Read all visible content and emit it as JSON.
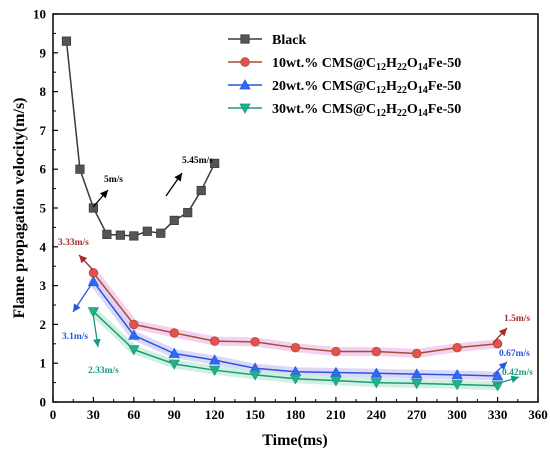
{
  "chart_data": {
    "type": "line",
    "xlabel": "Time(ms)",
    "ylabel": "Flame propagation velocity(m/s)",
    "xlim": [
      0,
      360
    ],
    "ylim": [
      0,
      10
    ],
    "xticks": [
      "0",
      "30",
      "60",
      "90",
      "120",
      "150",
      "180",
      "210",
      "240",
      "270",
      "300",
      "330",
      "360"
    ],
    "yticks": [
      "0",
      "1",
      "2",
      "3",
      "4",
      "5",
      "6",
      "7",
      "8",
      "9",
      "10"
    ],
    "grid": false,
    "legend_position": "top-right",
    "series": [
      {
        "name": "Black",
        "color": "#3a3a3a",
        "fill": "#555555",
        "marker": "square",
        "x": [
          10,
          20,
          30,
          40,
          50,
          60,
          70,
          80,
          90,
          100,
          110,
          120
        ],
        "y": [
          9.3,
          6.0,
          5.0,
          4.32,
          4.3,
          4.28,
          4.4,
          4.35,
          4.68,
          4.88,
          5.45,
          6.15
        ]
      },
      {
        "name": "10wt.% CMS@C12H22O14Fe-50",
        "legend_parts": [
          "10wt.% CMS@C",
          "12",
          "H",
          "22",
          "O",
          "14",
          "Fe-50"
        ],
        "color": "#a0522d",
        "fill": "#e85050",
        "marker": "circle",
        "x": [
          30,
          60,
          90,
          120,
          150,
          180,
          210,
          240,
          270,
          300,
          330
        ],
        "y": [
          3.33,
          2.0,
          1.78,
          1.57,
          1.55,
          1.4,
          1.3,
          1.3,
          1.25,
          1.4,
          1.5
        ]
      },
      {
        "name": "20wt.% CMS@C12H22O14Fe-50",
        "legend_parts": [
          "20wt.% CMS@C",
          "12",
          "H",
          "22",
          "O",
          "14",
          "Fe-50"
        ],
        "color": "#2a55e0",
        "fill": "#2f6bf0",
        "marker": "triangle-up",
        "x": [
          30,
          60,
          90,
          120,
          150,
          180,
          210,
          240,
          270,
          300,
          330
        ],
        "y": [
          3.1,
          1.72,
          1.25,
          1.08,
          0.87,
          0.78,
          0.76,
          0.74,
          0.72,
          0.7,
          0.67
        ]
      },
      {
        "name": "30wt.% CMS@C12H22O14Fe-50",
        "legend_parts": [
          "30wt.% CMS@C",
          "12",
          "H",
          "22",
          "O",
          "14",
          "Fe-50"
        ],
        "color": "#1a9a80",
        "fill": "#22b08a",
        "marker": "triangle-down",
        "x": [
          30,
          60,
          90,
          120,
          150,
          180,
          210,
          240,
          270,
          300,
          330
        ],
        "y": [
          2.33,
          1.35,
          0.98,
          0.82,
          0.7,
          0.6,
          0.55,
          0.5,
          0.48,
          0.45,
          0.42
        ]
      }
    ],
    "annotations": [
      {
        "text": "5m/s",
        "color": "#000000"
      },
      {
        "text": "5.45m/s",
        "color": "#000000"
      },
      {
        "text": "3.33m/s",
        "color": "#a52a2a"
      },
      {
        "text": "3.1m/s",
        "color": "#2a55e0"
      },
      {
        "text": "2.33m/s",
        "color": "#1a9a80"
      },
      {
        "text": "1.5m/s",
        "color": "#a52a2a"
      },
      {
        "text": "0.67m/s",
        "color": "#2a55e0"
      },
      {
        "text": "0.42m/s",
        "color": "#1a9a80"
      }
    ]
  }
}
